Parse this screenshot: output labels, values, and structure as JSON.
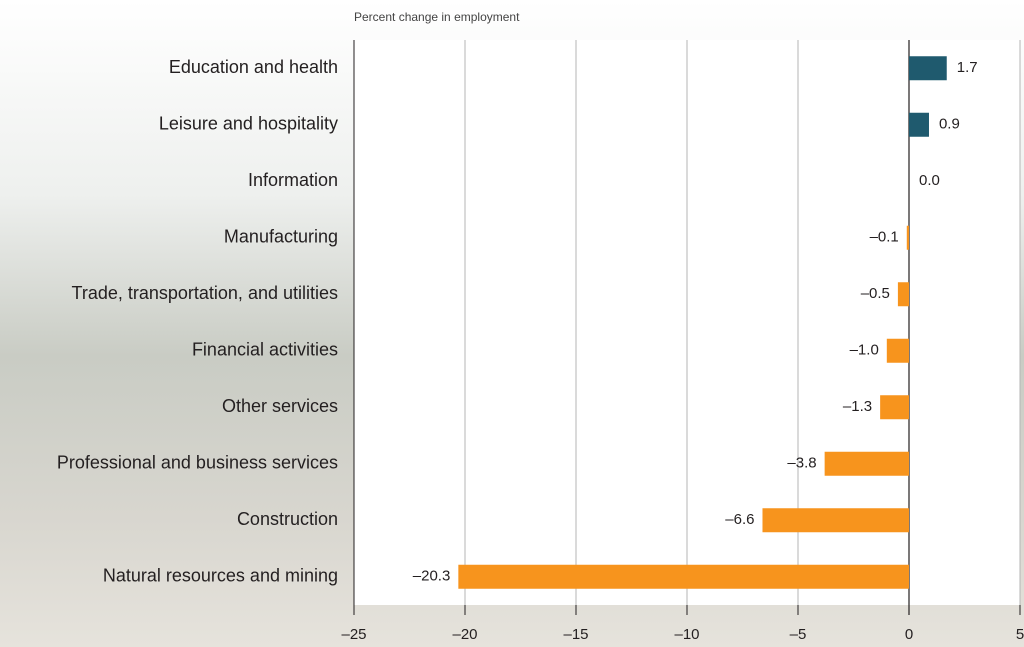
{
  "chart_data": {
    "type": "bar",
    "orientation": "horizontal",
    "title": "Percent change in employment",
    "categories": [
      "Education and health",
      "Leisure and hospitality",
      "Information",
      "Manufacturing",
      "Trade, transportation, and utilities",
      "Financial activities",
      "Other services",
      "Professional and business services",
      "Construction",
      "Natural resources and mining"
    ],
    "values": [
      1.7,
      0.9,
      0.0,
      -0.1,
      -0.5,
      -1.0,
      -1.3,
      -3.8,
      -6.6,
      -20.3
    ],
    "value_labels": [
      "1.7",
      "0.9",
      "0.0",
      "–0.1",
      "–0.5",
      "–1.0",
      "–1.3",
      "–3.8",
      "–6.6",
      "–20.3"
    ],
    "positive_color": "#1f5a6e",
    "negative_color": "#f7941d",
    "xlim": [
      -25,
      5
    ],
    "xticks": [
      {
        "value": -25,
        "label": "–25"
      },
      {
        "value": -20,
        "label": "–20"
      },
      {
        "value": -15,
        "label": "–15"
      },
      {
        "value": -10,
        "label": "–10"
      },
      {
        "value": -5,
        "label": "–5"
      },
      0,
      5
    ],
    "grid": true
  }
}
